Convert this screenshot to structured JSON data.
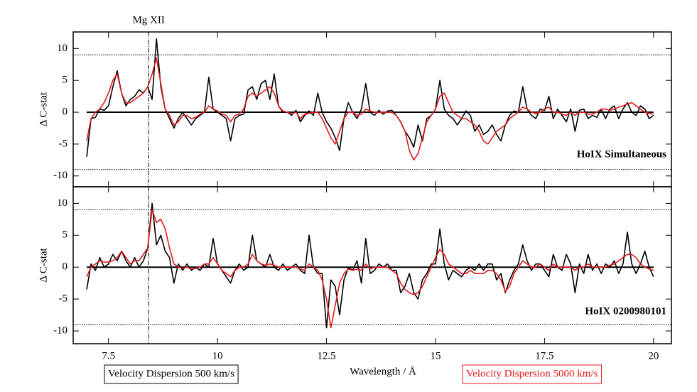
{
  "chart_data": [
    {
      "type": "line",
      "ylabel": "Δ C-stat",
      "annotation": "HoIX Simultaneous",
      "markers": [
        {
          "label": "Mg XII",
          "x": 8.42
        }
      ],
      "threshold_lines": [
        9,
        -9
      ],
      "xlim": [
        6.69,
        20.41
      ],
      "xticks": [
        7.5,
        10,
        12.5,
        15,
        17.5,
        20
      ],
      "ylim": [
        -11.7,
        12.6
      ],
      "yticks": [
        -10,
        -5,
        0,
        5,
        10
      ],
      "x": [
        7,
        7.1,
        7.2,
        7.3,
        7.4,
        7.5,
        7.6,
        7.7,
        7.8,
        7.9,
        8,
        8.1,
        8.2,
        8.3,
        8.4,
        8.5,
        8.6,
        8.7,
        8.8,
        8.9,
        9,
        9.1,
        9.2,
        9.3,
        9.4,
        9.5,
        9.6,
        9.7,
        9.8,
        9.9,
        10,
        10.1,
        10.2,
        10.3,
        10.4,
        10.5,
        10.6,
        10.7,
        10.8,
        10.9,
        11,
        11.1,
        11.2,
        11.3,
        11.4,
        11.5,
        11.6,
        11.7,
        11.8,
        11.9,
        12,
        12.1,
        12.2,
        12.3,
        12.4,
        12.5,
        12.6,
        12.7,
        12.8,
        12.9,
        13,
        13.1,
        13.2,
        13.3,
        13.4,
        13.5,
        13.6,
        13.7,
        13.8,
        13.9,
        14,
        14.1,
        14.2,
        14.3,
        14.4,
        14.5,
        14.6,
        14.7,
        14.8,
        14.9,
        15,
        15.1,
        15.2,
        15.3,
        15.4,
        15.5,
        15.6,
        15.7,
        15.8,
        15.9,
        16,
        16.1,
        16.2,
        16.3,
        16.4,
        16.5,
        16.6,
        16.7,
        16.8,
        16.9,
        17,
        17.1,
        17.2,
        17.3,
        17.4,
        17.5,
        17.6,
        17.7,
        17.8,
        17.9,
        18,
        18.1,
        18.2,
        18.3,
        18.4,
        18.5,
        18.6,
        18.7,
        18.8,
        18.9,
        19,
        19.1,
        19.2,
        19.3,
        19.4,
        19.5,
        19.6,
        19.7,
        19.8,
        19.9,
        20
      ],
      "series": [
        {
          "name": "Velocity Dispersion 500 km/s",
          "color": "#000000",
          "values": [
            -7,
            -1,
            -0.8,
            0.5,
            0.3,
            1,
            4,
            6.5,
            3,
            1,
            2,
            2.5,
            3.5,
            3,
            4,
            2,
            11.5,
            4,
            0.5,
            -1,
            -2.5,
            -1,
            0,
            -1,
            -2,
            -1,
            -0.5,
            0,
            5.5,
            0.5,
            0,
            -0.5,
            -1,
            -4.5,
            -1,
            -0.5,
            -0.3,
            3.5,
            4,
            2,
            4.5,
            5,
            2,
            6,
            1,
            0,
            0,
            -0.5,
            0.3,
            -1.5,
            -0.5,
            0.2,
            -0.5,
            3,
            0,
            -1.5,
            -2.5,
            -4,
            -6,
            -1,
            1.5,
            0,
            -1,
            0.5,
            4.5,
            0,
            -0.5,
            0.3,
            -0.3,
            0.2,
            0.3,
            -0.5,
            -1.5,
            -3,
            -4,
            -5.5,
            -2,
            -4.5,
            -1,
            -0.5,
            0.5,
            5,
            0.5,
            -0.5,
            -1,
            -2,
            -1,
            0.2,
            -0.5,
            -3,
            -2,
            -3.5,
            -3,
            -2,
            -3.5,
            -4.5,
            -2,
            -0.5,
            0.2,
            0,
            4,
            0.5,
            -0.5,
            -1,
            0.5,
            0.3,
            2.5,
            -1,
            0.5,
            -0.5,
            -1.5,
            0.5,
            -3,
            0.3,
            0.5,
            -1,
            -0.5,
            -0.8,
            0.5,
            -1,
            0.5,
            1,
            -1,
            0.5,
            1.5,
            0,
            -0.5,
            1,
            0.5,
            -1,
            -0.5
          ]
        },
        {
          "name": "Velocity Dispersion 5000 km/s",
          "color": "#e41a1c",
          "values": [
            -4.5,
            -1,
            0,
            0.5,
            1.5,
            3,
            5,
            6,
            3,
            1.5,
            1.5,
            2,
            2.5,
            3,
            4,
            6,
            8.5,
            4.5,
            0.5,
            -0.5,
            -2,
            -1.5,
            -0.5,
            -0.5,
            -1,
            -0.8,
            -0.3,
            0,
            1,
            0.5,
            0.2,
            -0.3,
            -0.5,
            -1.5,
            -0.5,
            -0.3,
            0.5,
            2.5,
            3,
            2.5,
            3,
            3.5,
            4,
            3,
            1,
            0.2,
            0,
            -0.3,
            0,
            -1,
            -0.3,
            -0.2,
            0,
            0,
            -1,
            -2.5,
            -4,
            -5,
            -3,
            -1,
            0,
            0,
            -0.5,
            -0.3,
            0.5,
            0.2,
            0,
            0,
            0,
            0,
            0,
            -0.5,
            -1.5,
            -3,
            -6,
            -7.5,
            -6.5,
            -4,
            -1.5,
            -0.5,
            0.5,
            2.5,
            3,
            1.5,
            0,
            -0.5,
            -1,
            -1,
            -1.5,
            -2,
            -3,
            -4.5,
            -5,
            -4,
            -3,
            -2.5,
            -2,
            -1,
            -0.5,
            0,
            0.8,
            0.5,
            0,
            -0.2,
            0,
            0.5,
            0.8,
            0,
            0,
            -0.3,
            -0.5,
            0,
            -0.5,
            0,
            0,
            -0.3,
            -0.3,
            0,
            0.5,
            0.5,
            0.3,
            0.5,
            0.8,
            1,
            1.3,
            1.5,
            1,
            0.5,
            0,
            -0.2,
            -0.3
          ]
        }
      ]
    },
    {
      "type": "line",
      "ylabel": "Δ C-stat",
      "xlabel": "Wavelength / Å",
      "annotation": "HoIX 0200980101",
      "threshold_lines": [
        9,
        -9
      ],
      "xlim": [
        6.69,
        20.41
      ],
      "xticks": [
        7.5,
        10,
        12.5,
        15,
        17.5,
        20
      ],
      "ylim": [
        -12,
        12.6
      ],
      "yticks": [
        -10,
        -5,
        0,
        5,
        10
      ],
      "x": [
        7,
        7.1,
        7.2,
        7.3,
        7.4,
        7.5,
        7.6,
        7.7,
        7.8,
        7.9,
        8,
        8.1,
        8.2,
        8.3,
        8.4,
        8.5,
        8.6,
        8.7,
        8.8,
        8.9,
        9,
        9.1,
        9.2,
        9.3,
        9.4,
        9.5,
        9.6,
        9.7,
        9.8,
        9.9,
        10,
        10.1,
        10.2,
        10.3,
        10.4,
        10.5,
        10.6,
        10.7,
        10.8,
        10.9,
        11,
        11.1,
        11.2,
        11.3,
        11.4,
        11.5,
        11.6,
        11.7,
        11.8,
        11.9,
        12,
        12.1,
        12.2,
        12.3,
        12.4,
        12.5,
        12.6,
        12.7,
        12.8,
        12.9,
        13,
        13.1,
        13.2,
        13.3,
        13.4,
        13.5,
        13.6,
        13.7,
        13.8,
        13.9,
        14,
        14.1,
        14.2,
        14.3,
        14.4,
        14.5,
        14.6,
        14.7,
        14.8,
        14.9,
        15,
        15.1,
        15.2,
        15.3,
        15.4,
        15.5,
        15.6,
        15.7,
        15.8,
        15.9,
        16,
        16.1,
        16.2,
        16.3,
        16.4,
        16.5,
        16.6,
        16.7,
        16.8,
        16.9,
        17,
        17.1,
        17.2,
        17.3,
        17.4,
        17.5,
        17.6,
        17.7,
        17.8,
        17.9,
        18,
        18.1,
        18.2,
        18.3,
        18.4,
        18.5,
        18.6,
        18.7,
        18.8,
        18.9,
        19,
        19.1,
        19.2,
        19.3,
        19.4,
        19.5,
        19.6,
        19.7,
        19.8,
        19.9,
        20
      ],
      "series": [
        {
          "color": "#000000",
          "values": [
            -3.5,
            0.5,
            -0.5,
            1.5,
            0,
            0.5,
            2,
            1,
            2.5,
            1,
            0,
            1.5,
            0,
            1,
            3,
            10,
            3.5,
            5,
            2.5,
            1.5,
            -2.5,
            0.5,
            -0.5,
            0.5,
            -0.5,
            0,
            -0.5,
            0.5,
            0,
            4.5,
            0.5,
            -0.5,
            -1.5,
            -2.5,
            -0.5,
            0.5,
            -0.5,
            0,
            5,
            1,
            0.5,
            0,
            2,
            0,
            -0.5,
            0.5,
            -0.5,
            0,
            0.5,
            -0.5,
            -1,
            5,
            0,
            -1,
            -1,
            -9.5,
            -2,
            -3,
            -7.5,
            -2,
            0,
            -0.5,
            1,
            -2.5,
            4.5,
            -1,
            -0.5,
            0.5,
            0,
            0.5,
            -0.5,
            -0.5,
            -4,
            -3,
            -1,
            -4,
            -5,
            -2,
            -1,
            0.5,
            0.5,
            6,
            0.5,
            -2,
            -0.5,
            -1,
            -1.5,
            -0.5,
            0,
            -0.5,
            0.5,
            -0.5,
            0.5,
            0.5,
            -2,
            -1,
            -4,
            -2,
            -0.5,
            0.5,
            3.5,
            1,
            -0.5,
            0.5,
            0.5,
            -0.5,
            -1.5,
            2,
            0,
            -0.5,
            2,
            0.5,
            -4,
            0.5,
            -1,
            2,
            -0.5,
            0.5,
            -1,
            0.5,
            0,
            1,
            -1,
            0.5,
            5.5,
            0.5,
            -1,
            0.5,
            2.5,
            0,
            -1.5
          ]
        },
        {
          "color": "#e41a1c",
          "values": [
            -1.5,
            0,
            0.5,
            1,
            0.8,
            0.8,
            1,
            1.5,
            2.5,
            1.5,
            0.5,
            1,
            1,
            2,
            3,
            9,
            7,
            7.5,
            6,
            3,
            0.5,
            0,
            -0.2,
            0,
            -0.3,
            -0.2,
            0,
            0.5,
            0.5,
            1.5,
            0.5,
            -0.5,
            -1,
            -1.5,
            -0.5,
            0,
            0,
            0.5,
            2,
            1,
            0.5,
            0.3,
            0.5,
            0.3,
            0,
            0,
            0,
            0,
            0,
            -0.3,
            -0.5,
            0.5,
            0,
            -0.5,
            -2,
            -5,
            -9.5,
            -6,
            -2.5,
            -1,
            -0.3,
            -0.5,
            -0.3,
            -0.5,
            0.5,
            -0.3,
            0,
            0,
            0,
            0,
            -0.5,
            -1,
            -2.5,
            -3.5,
            -4,
            -4.3,
            -4,
            -3,
            -1.5,
            0,
            1.5,
            2.8,
            2,
            0.5,
            0,
            -0.5,
            -1,
            -1,
            -0.5,
            -1,
            -1,
            -1,
            -0.5,
            -0.5,
            -1,
            -2,
            -3.8,
            -3,
            -1,
            0,
            1,
            0.5,
            0,
            0,
            0.5,
            0,
            -0.5,
            0.5,
            0,
            0,
            0,
            0,
            -0.5,
            0,
            0,
            0.5,
            0,
            0,
            0,
            0,
            0.3,
            0.5,
            1,
            1.5,
            2,
            2,
            1.5,
            0.5,
            0,
            -0.3,
            -0.5
          ]
        }
      ]
    }
  ]
}
